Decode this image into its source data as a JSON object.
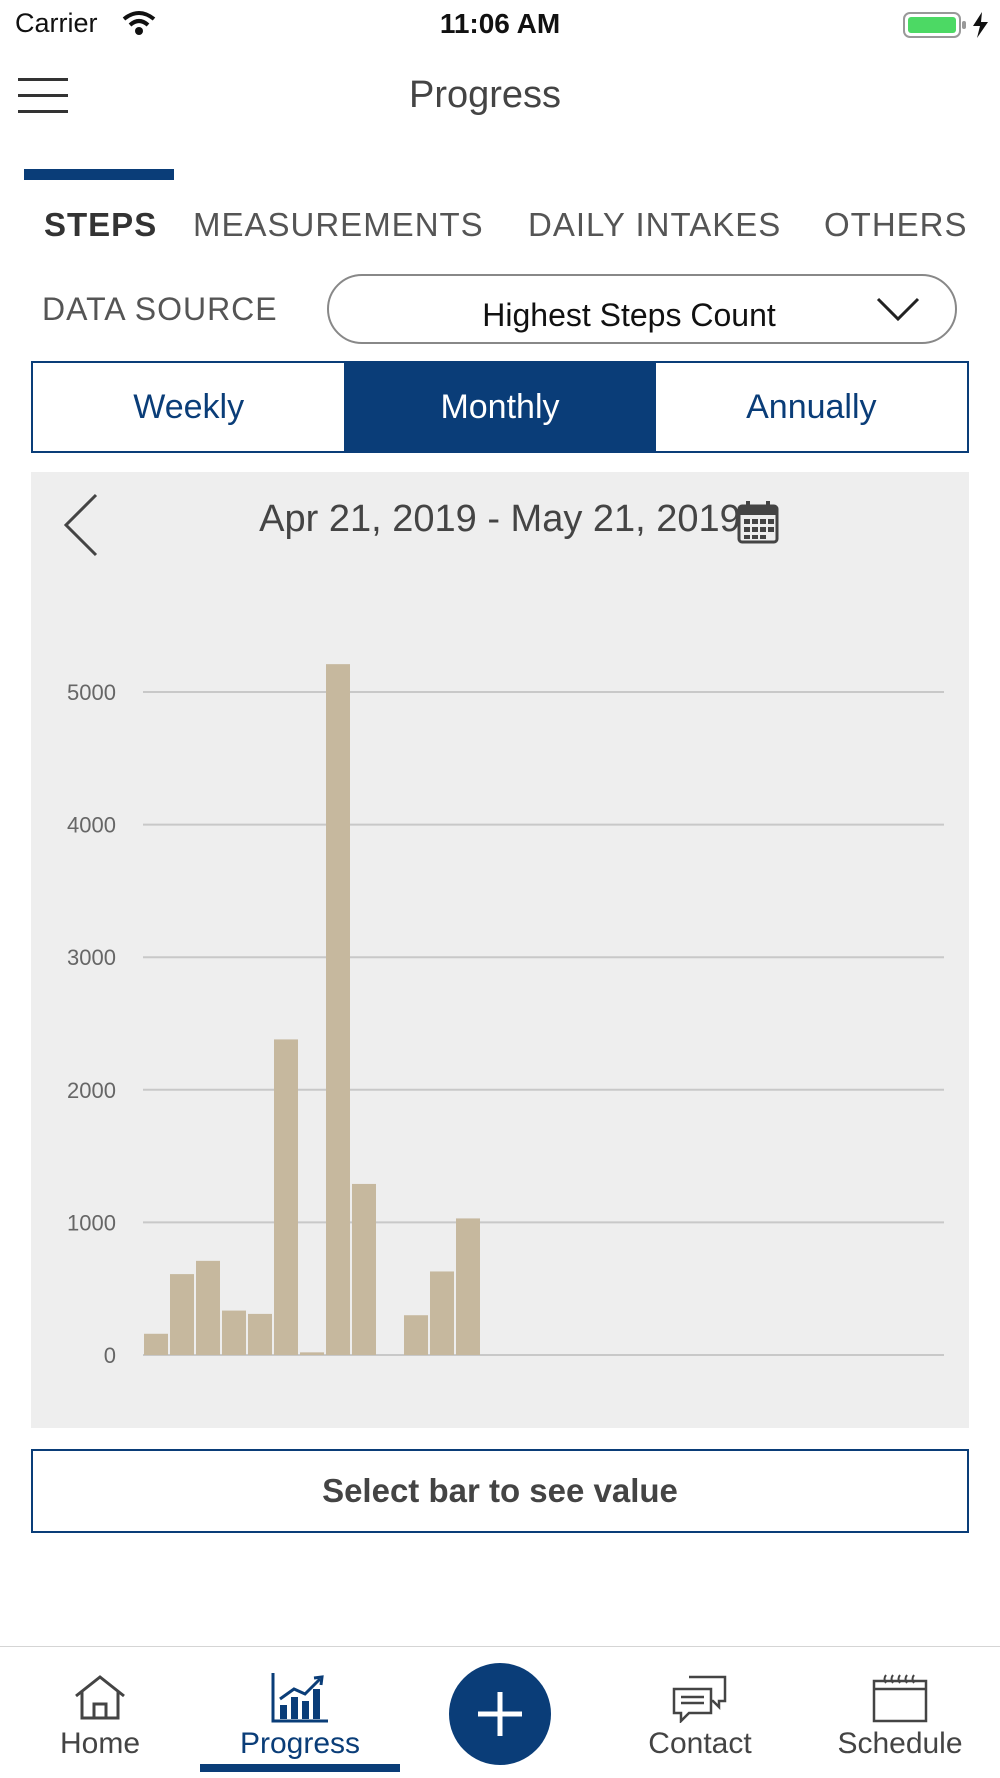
{
  "status_bar": {
    "carrier": "Carrier",
    "time": "11:06 AM"
  },
  "header": {
    "title": "Progress",
    "menu_icon": "hamburger-icon"
  },
  "tabs": [
    {
      "label": "STEPS",
      "active": true
    },
    {
      "label": "MEASUREMENTS",
      "active": false
    },
    {
      "label": "DAILY INTAKES",
      "active": false
    },
    {
      "label": "OTHERS",
      "active": false
    }
  ],
  "data_source": {
    "label": "DATA SOURCE",
    "selected": "Highest Steps Count"
  },
  "period": [
    {
      "label": "Weekly",
      "active": false
    },
    {
      "label": "Monthly",
      "active": true
    },
    {
      "label": "Annually",
      "active": false
    }
  ],
  "date_range": "Apr 21, 2019 - May 21, 2019",
  "select_bar_text": "Select bar to see value",
  "colors": {
    "accent": "#0a3d78",
    "bar": "#c6b89e",
    "panel": "#eeeeee"
  },
  "chart_data": {
    "type": "bar",
    "ylim": [
      0,
      5000
    ],
    "yticks": [
      "0",
      "1000",
      "2000",
      "3000",
      "4000",
      "5000"
    ],
    "values": [
      160,
      610,
      710,
      335,
      310,
      2380,
      20,
      5210,
      1290,
      0,
      300,
      630,
      1030,
      0,
      0,
      0,
      0,
      0,
      0,
      0,
      0,
      0,
      0,
      0,
      0,
      0,
      0,
      0,
      0,
      0,
      0
    ],
    "grid": true
  },
  "nav": [
    {
      "label": "Home",
      "icon": "home-icon",
      "active": false
    },
    {
      "label": "Progress",
      "icon": "progress-chart-icon",
      "active": true
    },
    {
      "label": "",
      "icon": "plus-icon",
      "active": false
    },
    {
      "label": "Contact",
      "icon": "chat-icon",
      "active": false
    },
    {
      "label": "Schedule",
      "icon": "calendar-icon",
      "active": false
    }
  ]
}
